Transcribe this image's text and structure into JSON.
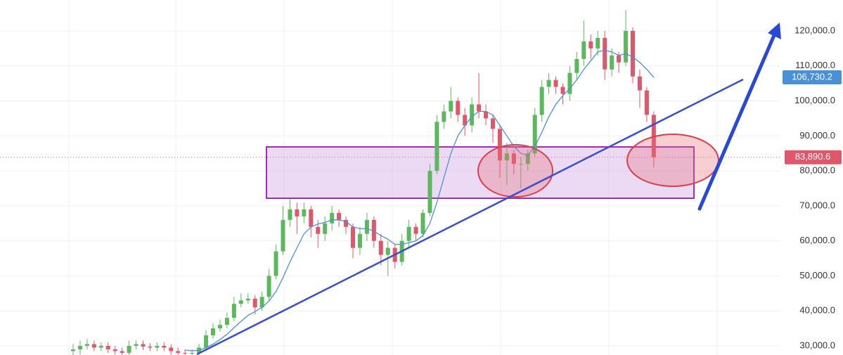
{
  "chart_data": {
    "type": "candlestick",
    "ylim": [
      27389,
      128836
    ],
    "yticks": [
      {
        "value": 30000,
        "label": "30,000.0"
      },
      {
        "value": 40000,
        "label": "40,000.0"
      },
      {
        "value": 50000,
        "label": "50,000.0"
      },
      {
        "value": 60000,
        "label": "60,000.0"
      },
      {
        "value": 70000,
        "label": "70,000.0"
      },
      {
        "value": 80000,
        "label": "80,000.0"
      },
      {
        "value": 90000,
        "label": "90,000.0"
      },
      {
        "value": 100000,
        "label": "100,000.0"
      },
      {
        "value": 110000,
        "label": "110,000.0"
      },
      {
        "value": 120000,
        "label": "120,000.0"
      }
    ],
    "grid": true,
    "up_color": "#5cb85c",
    "down_color": "#e0566a",
    "ma_color": "#4a90d9",
    "open": [
      28500,
      29000,
      30000,
      30500,
      29500,
      30000,
      29000,
      28500,
      28000,
      30000,
      30500,
      29800,
      29500,
      30000,
      29500,
      28500,
      28000,
      27800,
      28000,
      29500,
      33000,
      35000,
      36000,
      38000,
      42000,
      43000,
      43500,
      41000,
      44000,
      50000,
      57000,
      66000,
      69000,
      67000,
      69000,
      64000,
      62000,
      65000,
      68000,
      66000,
      64000,
      58000,
      62000,
      66000,
      60000,
      56000,
      58000,
      54000,
      60000,
      64000,
      62000,
      68000,
      80000,
      94000,
      97000,
      100000,
      96000,
      93000,
      99000,
      97000,
      95000,
      92000,
      83000,
      85000,
      82000,
      82000,
      85000,
      96000,
      104000,
      106000,
      104000,
      102000,
      108000,
      112000,
      117000,
      115000,
      118000,
      109000,
      113000,
      111000,
      120000,
      107000,
      103000,
      96000
    ],
    "high": [
      30500,
      31500,
      32000,
      31500,
      31000,
      31000,
      30000,
      29500,
      31500,
      31500,
      31500,
      30800,
      31000,
      31000,
      30500,
      29500,
      29000,
      29000,
      30500,
      34500,
      36500,
      37500,
      39500,
      44000,
      45000,
      45000,
      44500,
      45500,
      52000,
      59000,
      70000,
      72000,
      71000,
      71000,
      70000,
      66000,
      67000,
      70000,
      69000,
      67000,
      65000,
      64000,
      68000,
      67000,
      62000,
      60000,
      59000,
      62000,
      66000,
      65000,
      69000,
      82000,
      96000,
      99000,
      104000,
      101000,
      98000,
      101000,
      108000,
      99000,
      96000,
      93000,
      88000,
      86000,
      84000,
      86000,
      98000,
      106000,
      108000,
      107000,
      105000,
      110000,
      114000,
      123000,
      119000,
      120000,
      120000,
      115000,
      114000,
      126000,
      121000,
      109000,
      104000,
      97000
    ],
    "low": [
      27000,
      27500,
      29000,
      28500,
      28500,
      28000,
      27500,
      27000,
      27000,
      29000,
      28800,
      28500,
      28500,
      28500,
      27500,
      27000,
      26800,
      26800,
      27000,
      28500,
      32000,
      34000,
      35000,
      37000,
      41000,
      42000,
      39000,
      40000,
      43000,
      49000,
      56000,
      64000,
      62000,
      65000,
      61000,
      58000,
      60000,
      63000,
      64000,
      62000,
      55000,
      56000,
      60000,
      58000,
      53000,
      50000,
      52000,
      53000,
      58000,
      60000,
      61000,
      67000,
      79000,
      92000,
      95000,
      94000,
      90000,
      91000,
      95000,
      93000,
      88000,
      78000,
      76000,
      79000,
      75000,
      80000,
      84000,
      94000,
      102000,
      102000,
      99000,
      100000,
      106000,
      110000,
      112000,
      113000,
      106000,
      107000,
      108000,
      110000,
      105000,
      98000,
      94000,
      81000
    ],
    "close": [
      29000,
      30000,
      30500,
      29500,
      30000,
      29000,
      28500,
      28000,
      30000,
      30500,
      29800,
      29500,
      30000,
      29500,
      28500,
      28000,
      27800,
      28000,
      29500,
      33000,
      35000,
      36000,
      38000,
      42000,
      43000,
      43500,
      41000,
      44000,
      50000,
      57000,
      66000,
      69000,
      67000,
      69000,
      64000,
      62000,
      65000,
      68000,
      66000,
      64000,
      58000,
      62000,
      66000,
      60000,
      56000,
      58000,
      54000,
      60000,
      64000,
      62000,
      68000,
      80000,
      94000,
      97000,
      100000,
      96000,
      93000,
      99000,
      97000,
      95000,
      92000,
      83000,
      85000,
      82000,
      82000,
      85000,
      96000,
      104000,
      106000,
      104000,
      102000,
      108000,
      112000,
      117000,
      115000,
      118000,
      109000,
      113000,
      111000,
      120000,
      107000,
      103000,
      96000,
      83890.6
    ],
    "ma": [
      null,
      null,
      null,
      null,
      null,
      null,
      null,
      null,
      null,
      null,
      null,
      null,
      null,
      null,
      null,
      null,
      28800,
      28600,
      28700,
      29500,
      30500,
      31800,
      33300,
      35200,
      37000,
      38700,
      39800,
      41000,
      42800,
      45500,
      49500,
      54000,
      58000,
      62000,
      64000,
      64800,
      65300,
      66000,
      66000,
      65500,
      64000,
      63500,
      63500,
      62800,
      61500,
      60500,
      59000,
      59000,
      59500,
      60000,
      61500,
      65000,
      71000,
      78000,
      85000,
      90000,
      93000,
      95500,
      97000,
      97000,
      96000,
      93000,
      90000,
      87000,
      85000,
      84500,
      87000,
      91000,
      95500,
      99000,
      101500,
      103500,
      106000,
      109000,
      111500,
      114000,
      114500,
      114000,
      113000,
      113500,
      112500,
      111000,
      109000,
      106730.2
    ],
    "ma_label": {
      "value": 106730.2,
      "label": "106,730.2"
    },
    "current_price": {
      "value": 83890.6,
      "label": "83,890.6"
    }
  }
}
